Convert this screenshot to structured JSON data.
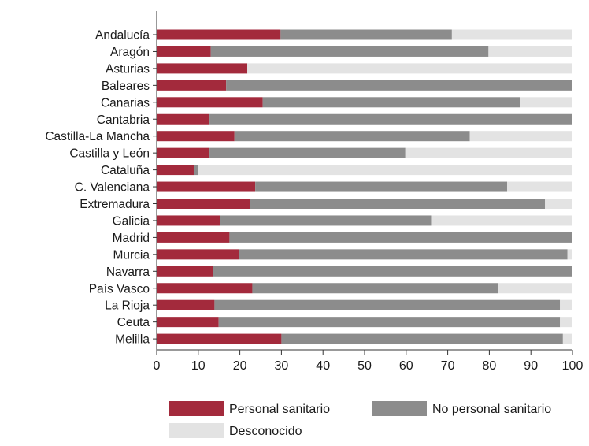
{
  "chart_data": {
    "type": "bar",
    "orientation": "horizontal",
    "stacked": true,
    "categories": [
      "Andalucía",
      "Aragón",
      "Asturias",
      "Baleares",
      "Canarias",
      "Cantabria",
      "Castilla-La Mancha",
      "Castilla y León",
      "Cataluña",
      "C. Valenciana",
      "Extremadura",
      "Galicia",
      "Madrid",
      "Murcia",
      "Navarra",
      "País Vasco",
      "La Rioja",
      "Ceuta",
      "Melilla"
    ],
    "series": [
      {
        "name": "Personal sanitario",
        "color": "#a32a3c",
        "values": [
          29.8,
          13,
          21.8,
          16.7,
          25.5,
          12.7,
          18.7,
          12.7,
          8.9,
          23.7,
          22.5,
          15.2,
          17.5,
          19.8,
          13.5,
          23,
          13.9,
          14.9,
          30
        ]
      },
      {
        "name": "No personal sanitario",
        "color": "#8c8c8c",
        "values": [
          41.2,
          66.8,
          0,
          83.3,
          62,
          87.3,
          56.6,
          47.1,
          1,
          60.6,
          70.9,
          50.8,
          82.5,
          79,
          86.5,
          59.2,
          83.1,
          82.1,
          67.7
        ]
      },
      {
        "name": "Desconocido",
        "color": "#e3e3e3",
        "values": [
          29,
          20.2,
          78.2,
          0,
          12.5,
          0,
          24.7,
          40.2,
          90.1,
          15.7,
          6.6,
          34,
          0,
          1.2,
          0,
          17.8,
          3,
          3,
          2.3
        ]
      }
    ],
    "xlim": [
      0,
      100
    ],
    "xticks": [
      "0",
      "10",
      "20",
      "30",
      "40",
      "50",
      "60",
      "70",
      "80",
      "90",
      "100"
    ],
    "legend": {
      "position": "bottom",
      "items": [
        "Personal sanitario",
        "No personal sanitario",
        "Desconocido"
      ]
    }
  }
}
